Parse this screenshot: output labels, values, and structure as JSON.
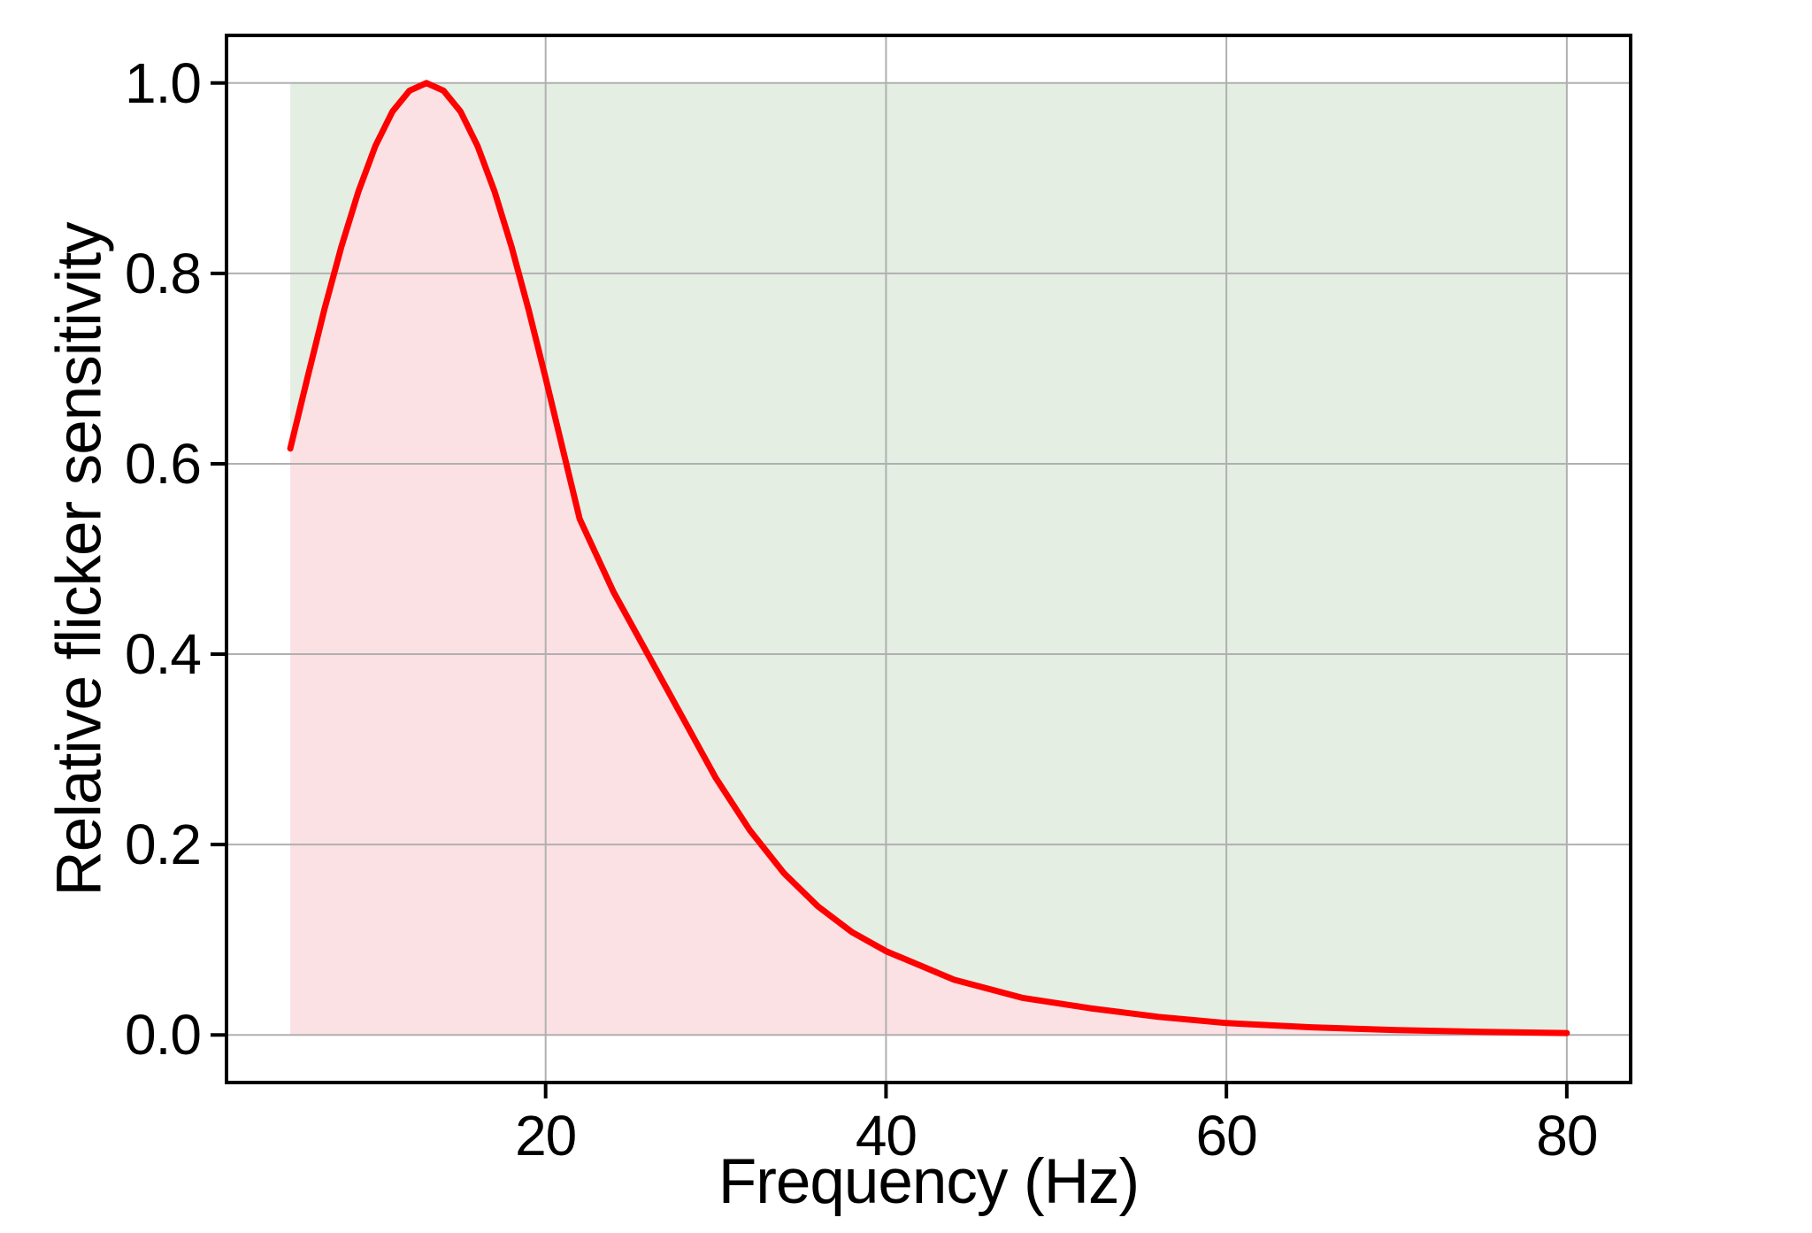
{
  "figure": {
    "background_color": "#ffffff"
  },
  "chart_data": {
    "type": "line",
    "title": "",
    "xlabel": "Frequency (Hz)",
    "ylabel": "Relative flicker sensitivity",
    "xlim": [
      1.25,
      83.75
    ],
    "ylim": [
      -0.05,
      1.05
    ],
    "xticks": [
      20,
      40,
      60,
      80
    ],
    "xticklabels": [
      "20",
      "40",
      "60",
      "80"
    ],
    "yticks": [
      0.0,
      0.2,
      0.4,
      0.6,
      0.8,
      1.0
    ],
    "yticklabels": [
      "0.0",
      "0.2",
      "0.4",
      "0.6",
      "0.8",
      "1.0"
    ],
    "grid": true,
    "grid_color": "#b0b0b0",
    "spine_color": "#000000",
    "legend": "none",
    "peak": {
      "frequency_hz": 13,
      "sensitivity": 1.0
    },
    "series": [
      {
        "name": "relative flicker sensitivity curve",
        "color": "#ff0000",
        "x": [
          5,
          6,
          7,
          8,
          9,
          10,
          11,
          12,
          13,
          14,
          15,
          16,
          17,
          18,
          19,
          20,
          21,
          22,
          24,
          26,
          28,
          30,
          32,
          34,
          36,
          38,
          40,
          44,
          48,
          52,
          56,
          60,
          65,
          70,
          75,
          80
        ],
        "y": [
          0.616,
          0.69,
          0.762,
          0.828,
          0.886,
          0.934,
          0.97,
          0.992,
          1.0,
          0.992,
          0.97,
          0.934,
          0.886,
          0.828,
          0.762,
          0.69,
          0.616,
          0.542,
          0.465,
          0.4,
          0.335,
          0.27,
          0.215,
          0.17,
          0.135,
          0.108,
          0.088,
          0.058,
          0.039,
          0.028,
          0.019,
          0.0125,
          0.008,
          0.005,
          0.0033,
          0.002
        ]
      }
    ],
    "shaded_regions": {
      "x_range": [
        5,
        80
      ],
      "fill_top": 1.0,
      "fill_bottom": 0.0,
      "below_curve_color": "#fbe1e3",
      "above_curve_color": "#e4eee3"
    }
  }
}
